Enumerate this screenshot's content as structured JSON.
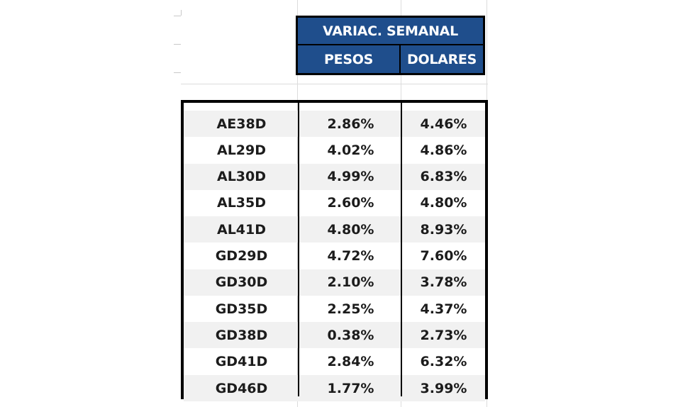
{
  "header": {
    "title": "VARIAC. SEMANAL",
    "col_pesos": "PESOS",
    "col_dolares": "DOLARES"
  },
  "rows": [
    {
      "bond": "AE38D",
      "pesos": "2.86%",
      "dolares": "4.46%"
    },
    {
      "bond": "AL29D",
      "pesos": "4.02%",
      "dolares": "4.86%"
    },
    {
      "bond": "AL30D",
      "pesos": "4.99%",
      "dolares": "6.83%"
    },
    {
      "bond": "AL35D",
      "pesos": "2.60%",
      "dolares": "4.80%"
    },
    {
      "bond": "AL41D",
      "pesos": "4.80%",
      "dolares": "8.93%"
    },
    {
      "bond": "GD29D",
      "pesos": "4.72%",
      "dolares": "7.60%"
    },
    {
      "bond": "GD30D",
      "pesos": "2.10%",
      "dolares": "3.78%"
    },
    {
      "bond": "GD35D",
      "pesos": "2.25%",
      "dolares": "4.37%"
    },
    {
      "bond": "GD38D",
      "pesos": "0.38%",
      "dolares": "2.73%"
    },
    {
      "bond": "GD41D",
      "pesos": "2.84%",
      "dolares": "6.32%"
    },
    {
      "bond": "GD46D",
      "pesos": "1.77%",
      "dolares": "3.99%"
    }
  ],
  "colors": {
    "header_bg": "#1f4e8c",
    "header_text": "#ffffff",
    "row_shade": "#f1f1f1",
    "border": "#000000"
  }
}
